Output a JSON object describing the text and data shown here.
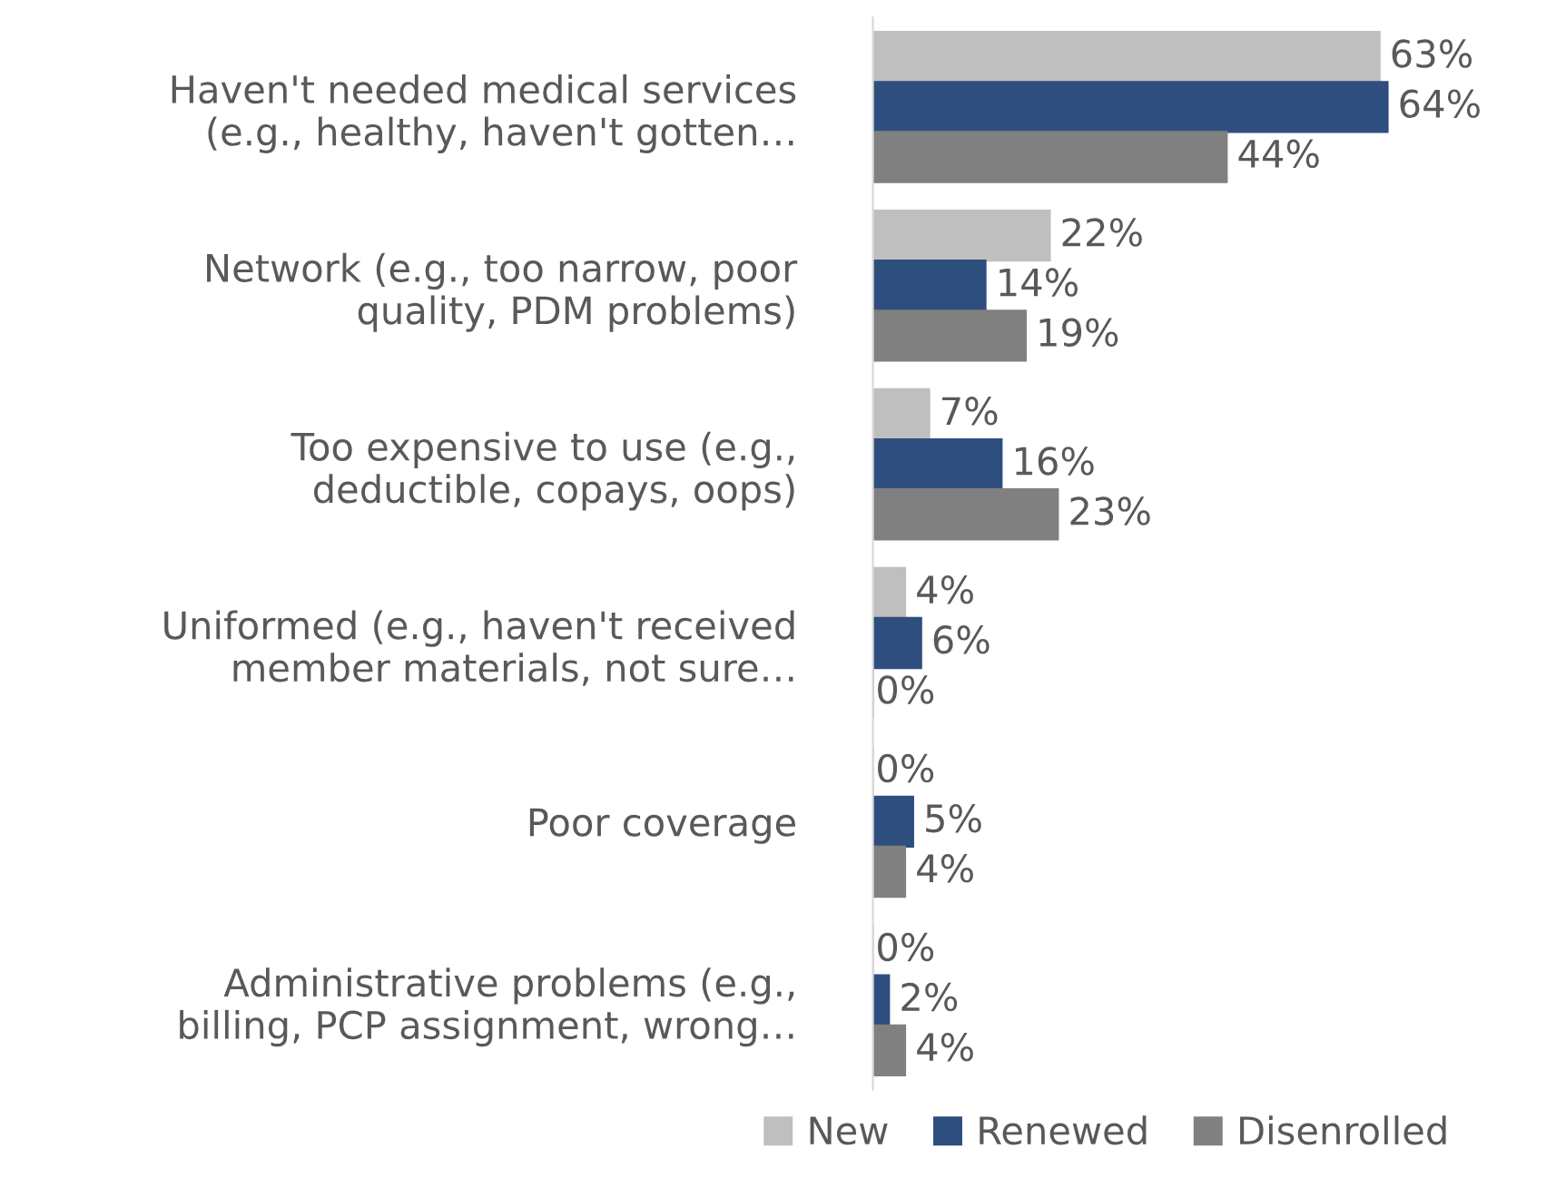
{
  "chart_data": {
    "type": "bar",
    "orientation": "horizontal",
    "legend": "bottom",
    "grid": false,
    "categories": [
      "Haven't needed medical services\n(e.g., healthy, haven't gotten…",
      "Network (e.g., too narrow, poor\nquality, PDM problems)",
      "Too expensive to use (e.g.,\ndeductible, copays, oops)",
      "Uniformed (e.g., haven't received\nmember materials, not sure…",
      "Poor coverage",
      "Administrative problems (e.g.,\nbilling, PCP assignment, wrong…"
    ],
    "series": [
      {
        "name": "New",
        "color": "#bfbfbf",
        "values": [
          63,
          22,
          7,
          4,
          0,
          0
        ],
        "value_labels": [
          "63%",
          "22%",
          "7%",
          "4%",
          "0%",
          "0%"
        ]
      },
      {
        "name": "Renewed",
        "color": "#2e4e7e",
        "values": [
          64,
          14,
          16,
          6,
          5,
          2
        ],
        "value_labels": [
          "64%",
          "14%",
          "16%",
          "6%",
          "5%",
          "2%"
        ]
      },
      {
        "name": "Disenrolled",
        "color": "#808080",
        "values": [
          44,
          19,
          23,
          0,
          4,
          4
        ],
        "value_labels": [
          "44%",
          "19%",
          "23%",
          "0%",
          "4%",
          "4%"
        ]
      }
    ]
  }
}
